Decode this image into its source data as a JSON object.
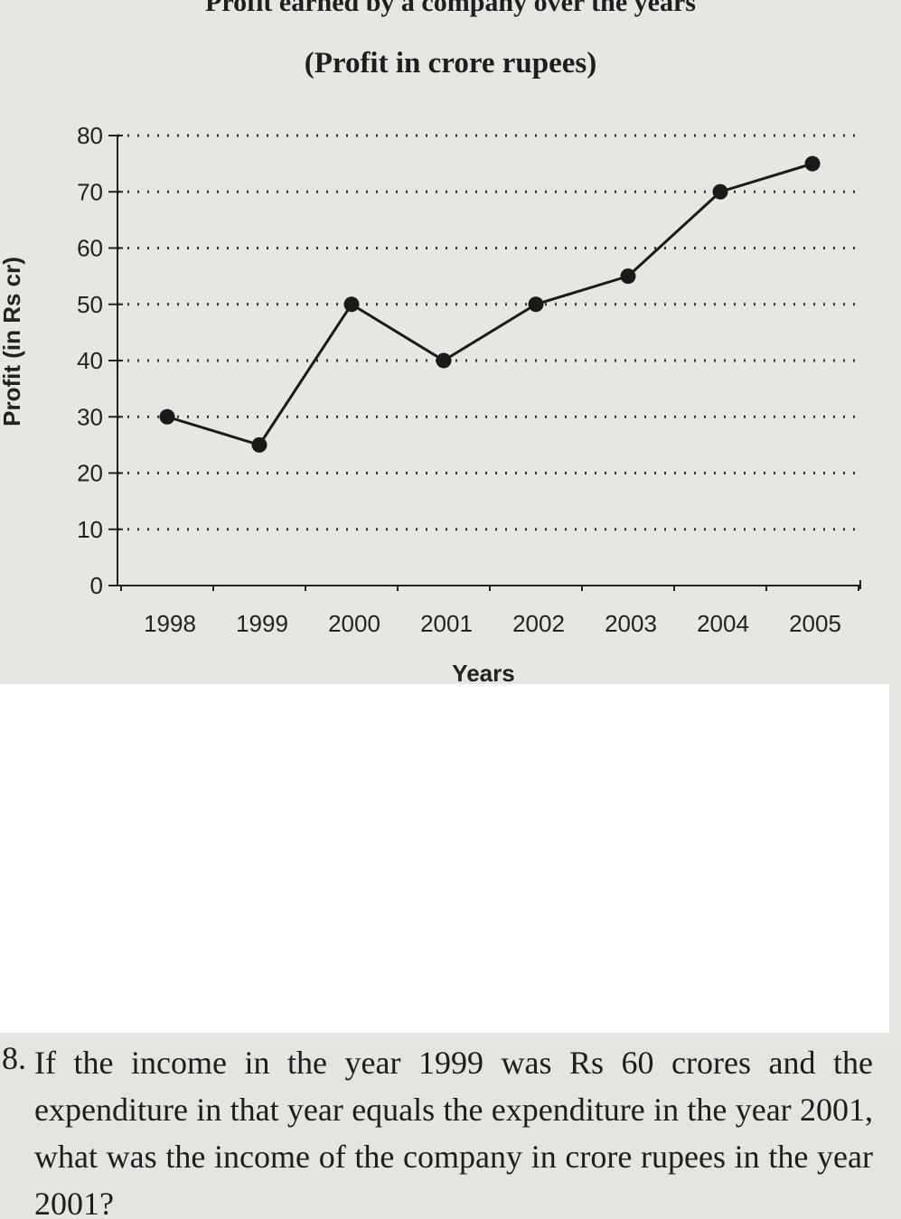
{
  "chart_data": {
    "type": "line",
    "title": "Profit earned by a company over the years",
    "subtitle": "(Profit in crore rupees)",
    "xlabel": "Years",
    "ylabel": "Profit (in Rs cr)",
    "categories": [
      "1998",
      "1999",
      "2000",
      "2001",
      "2002",
      "2003",
      "2004",
      "2005"
    ],
    "values": [
      30,
      25,
      50,
      40,
      50,
      55,
      70,
      75
    ],
    "ylim": [
      0,
      80
    ],
    "yticks": [
      0,
      10,
      20,
      30,
      40,
      50,
      60,
      70,
      80
    ],
    "grid": "horizontal dotted",
    "line_color": "#1a1a1a"
  },
  "question": {
    "marker": "8.",
    "text": "If the income in the year 1999 was Rs 60 crores and the expenditure in that year equals the expenditure in the year 2001, what was the income of the company in crore rupees in the year 2001?"
  }
}
